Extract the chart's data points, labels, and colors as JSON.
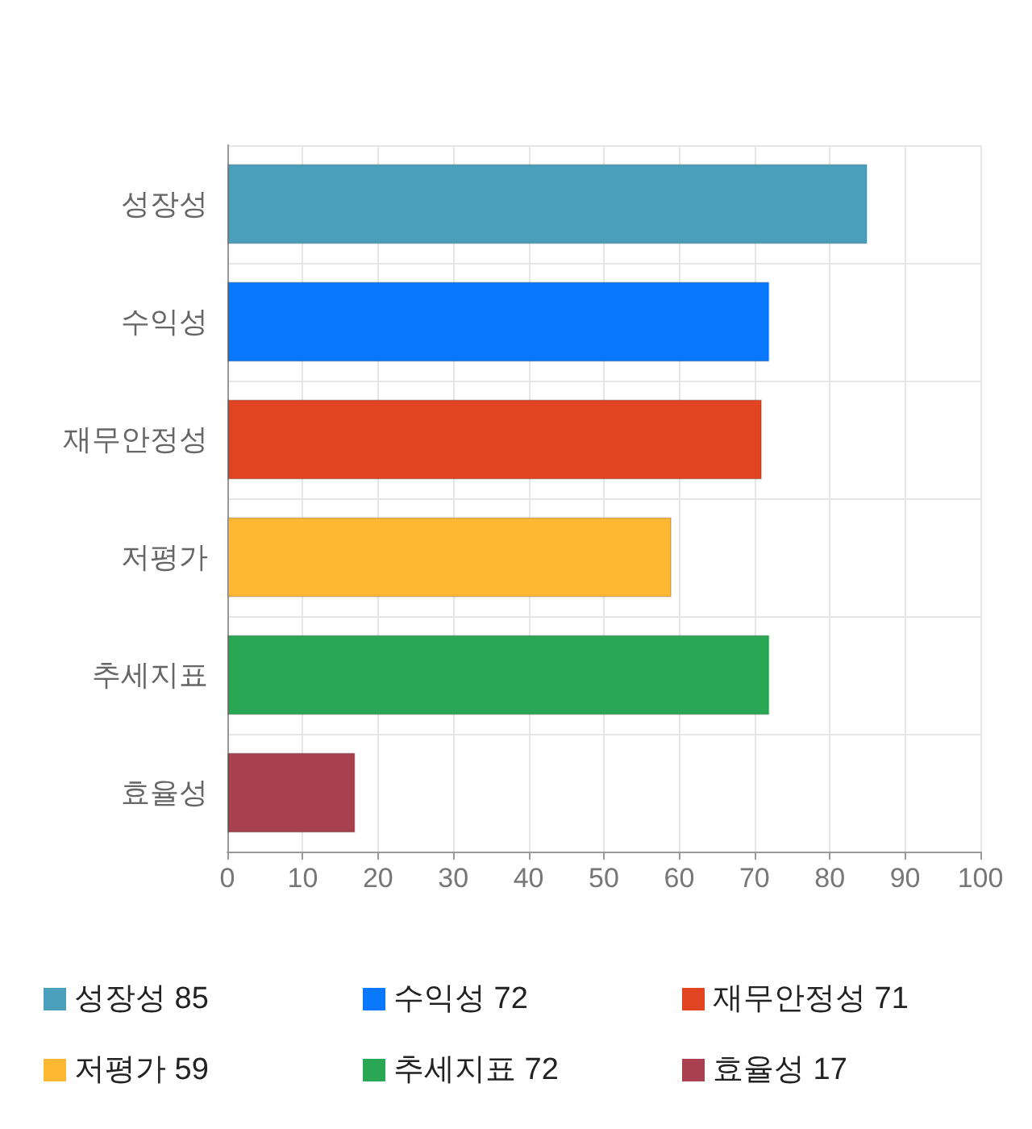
{
  "chart_data": {
    "type": "bar",
    "orientation": "horizontal",
    "categories": [
      "성장성",
      "수익성",
      "재무안정성",
      "저평가",
      "추세지표",
      "효율성"
    ],
    "series": [
      {
        "name": "성장성 85",
        "color": "#4aa0ba",
        "values": [
          85,
          null,
          null,
          null,
          null,
          null
        ]
      },
      {
        "name": "수익성 72",
        "color": "#0a78fd",
        "values": [
          null,
          72,
          null,
          null,
          null,
          null
        ]
      },
      {
        "name": "재무안정성 71",
        "color": "#e14423",
        "values": [
          null,
          null,
          71,
          null,
          null,
          null
        ]
      },
      {
        "name": "저평가 59",
        "color": "#fdb733",
        "values": [
          null,
          null,
          null,
          59,
          null,
          null
        ]
      },
      {
        "name": "추세지표 72",
        "color": "#29a755",
        "values": [
          null,
          null,
          null,
          null,
          72,
          null
        ]
      },
      {
        "name": "효율성 17",
        "color": "#a8404f",
        "values": [
          null,
          null,
          null,
          null,
          null,
          17
        ]
      }
    ],
    "xlim": [
      0,
      100
    ],
    "xticks": [
      0,
      10,
      20,
      30,
      40,
      50,
      60,
      70,
      80,
      90,
      100
    ],
    "grid": true,
    "legend": "bottom"
  }
}
